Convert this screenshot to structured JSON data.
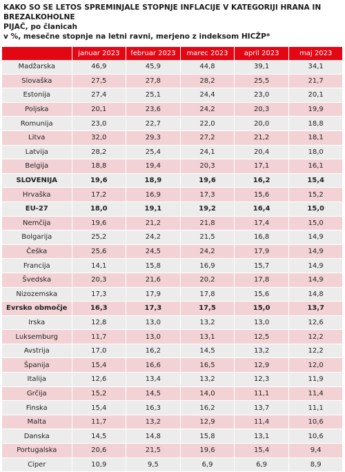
{
  "header": {
    "title": "KAKO SO SE LETOS SPREMINJALE STOPNJE INFLACIJE V KATEGORIJI HRANA IN BREZALKOHOLNE",
    "title2": "PIJAČ, po članicah",
    "subtitle": "v %, mesečne stopnje na letni ravni, merjeno z indeksom HICŽP*"
  },
  "colors": {
    "header_red": "#e30613",
    "row_grey": "#ececec",
    "row_pink": "#f3d2d5"
  },
  "chart_data": {
    "type": "table",
    "columns": [
      "",
      "januar 2023",
      "februar 2023",
      "marec 2023",
      "april 2023",
      "maj 2023"
    ],
    "rows": [
      {
        "name": "Madžarska",
        "values": [
          "46,9",
          "45,9",
          "44,8",
          "39,1",
          "34,1"
        ],
        "bold": false
      },
      {
        "name": "Slovaška",
        "values": [
          "27,5",
          "27,8",
          "28,2",
          "25,5",
          "21,7"
        ],
        "bold": false
      },
      {
        "name": "Estonija",
        "values": [
          "27,4",
          "25,1",
          "24,4",
          "23,0",
          "20,1"
        ],
        "bold": false
      },
      {
        "name": "Poljska",
        "values": [
          "20,1",
          "23,6",
          "24,2",
          "20,3",
          "19,9"
        ],
        "bold": false
      },
      {
        "name": "Romunija",
        "values": [
          "23,0",
          "22,7",
          "22,0",
          "20,0",
          "18,8"
        ],
        "bold": false
      },
      {
        "name": "Litva",
        "values": [
          "32,0",
          "29,3",
          "27,2",
          "21,2",
          "18,1"
        ],
        "bold": false
      },
      {
        "name": "Latvija",
        "values": [
          "28,2",
          "25,4",
          "24,1",
          "20,4",
          "18,0"
        ],
        "bold": false
      },
      {
        "name": "Belgija",
        "values": [
          "18,8",
          "19,4",
          "20,3",
          "17,1",
          "16,1"
        ],
        "bold": false
      },
      {
        "name": "SLOVENIJA",
        "values": [
          "19,6",
          "18,9",
          "19,6",
          "16,2",
          "15,4"
        ],
        "bold": true
      },
      {
        "name": "Hrvaška",
        "values": [
          "17,2",
          "16,9",
          "17,3",
          "15,6",
          "15,2"
        ],
        "bold": false
      },
      {
        "name": "EU-27",
        "values": [
          "18,0",
          "19,1",
          "19,2",
          "16,4",
          "15,0"
        ],
        "bold": true
      },
      {
        "name": "Nemčija",
        "values": [
          "19,6",
          "21,2",
          "21,8",
          "17,4",
          "15,0"
        ],
        "bold": false
      },
      {
        "name": "Bolgarija",
        "values": [
          "25,2",
          "24,2",
          "21,5",
          "16,8",
          "14,9"
        ],
        "bold": false
      },
      {
        "name": "Češka",
        "values": [
          "25,6",
          "24,5",
          "24,2",
          "17,9",
          "14,9"
        ],
        "bold": false
      },
      {
        "name": "Francija",
        "values": [
          "14,1",
          "15,8",
          "16,9",
          "15,7",
          "14,9"
        ],
        "bold": false
      },
      {
        "name": "Švedska",
        "values": [
          "20,3",
          "21,6",
          "20,2",
          "17,8",
          "14,9"
        ],
        "bold": false
      },
      {
        "name": "Nizozemska",
        "values": [
          "17,3",
          "17,9",
          "17,8",
          "15,6",
          "14,8"
        ],
        "bold": false
      },
      {
        "name": "Evrsko območje",
        "values": [
          "16,3",
          "17,3",
          "17,5",
          "15,0",
          "13,7"
        ],
        "bold": true
      },
      {
        "name": "Irska",
        "values": [
          "12,8",
          "13,0",
          "13,2",
          "13,0",
          "12,6"
        ],
        "bold": false
      },
      {
        "name": "Luksemburg",
        "values": [
          "11,7",
          "13,0",
          "13,1",
          "12,5",
          "12,2"
        ],
        "bold": false
      },
      {
        "name": "Avstrija",
        "values": [
          "17,0",
          "16,2",
          "14,5",
          "13,2",
          "12,2"
        ],
        "bold": false
      },
      {
        "name": "Španija",
        "values": [
          "15,4",
          "16,6",
          "16,5",
          "12,9",
          "12,0"
        ],
        "bold": false
      },
      {
        "name": "Italija",
        "values": [
          "12,6",
          "13,4",
          "13,2",
          "12,3",
          "11,9"
        ],
        "bold": false
      },
      {
        "name": "Grčija",
        "values": [
          "15,2",
          "14,5",
          "14,0",
          "11,1",
          "11,4"
        ],
        "bold": false
      },
      {
        "name": "Finska",
        "values": [
          "15,4",
          "16,3",
          "16,2",
          "13,7",
          "11,1"
        ],
        "bold": false
      },
      {
        "name": "Malta",
        "values": [
          "11,7",
          "13,2",
          "12,9",
          "11,4",
          "10,6"
        ],
        "bold": false
      },
      {
        "name": "Danska",
        "values": [
          "14,5",
          "14,8",
          "15,8",
          "13,1",
          "10,6"
        ],
        "bold": false
      },
      {
        "name": "Portugalska",
        "values": [
          "20,6",
          "21,5",
          "19,6",
          "15,4",
          "9,4"
        ],
        "bold": false
      },
      {
        "name": "Ciper",
        "values": [
          "10,9",
          "9,5",
          "6,9",
          "6,9",
          "8,9"
        ],
        "bold": false
      }
    ]
  }
}
